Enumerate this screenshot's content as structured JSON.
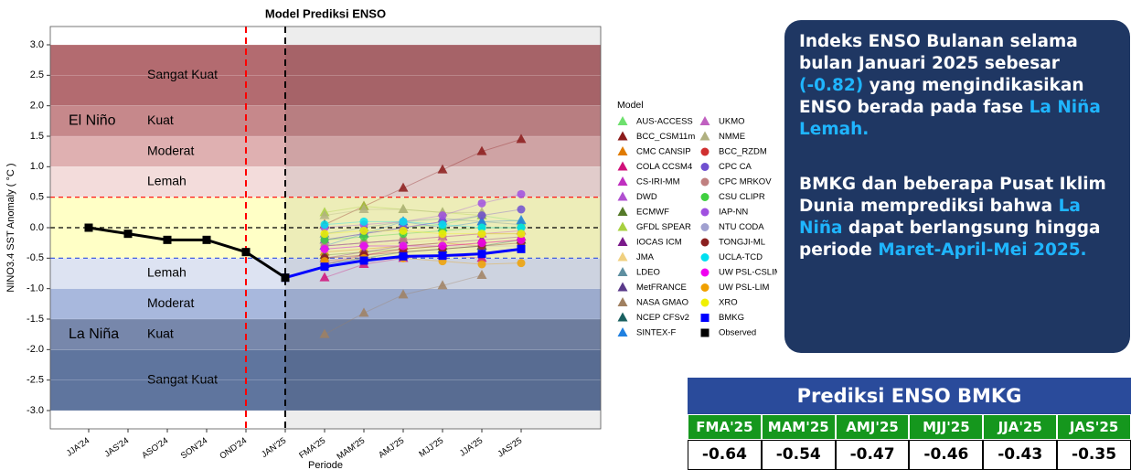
{
  "chart_data": {
    "type": "line",
    "title": "Model Prediksi ENSO",
    "y_label": "NINO3.4 SST Anomaly ( °C )",
    "x_label": "Periode",
    "categories": [
      "JJA'24",
      "JAS'24",
      "ASO'24",
      "SON'24",
      "OND'24",
      "JAN'25",
      "FMA'25",
      "MAM'25",
      "AMJ'25",
      "MJJ'25",
      "JJA'25",
      "JAS'25"
    ],
    "ylim": [
      -3.3,
      3.3
    ],
    "yticks": [
      {
        "value": 3,
        "label": "3.0"
      },
      2.5,
      {
        "value": 2,
        "label": "2.0"
      },
      1.5,
      {
        "value": 1,
        "label": "1.0"
      },
      0.5,
      {
        "value": 0,
        "label": "0.0"
      },
      -0.5,
      {
        "value": -1,
        "label": "-1.0"
      },
      -1.5,
      {
        "value": -2,
        "label": "-2.0"
      },
      -2.5,
      {
        "value": -3,
        "label": "-3.0"
      }
    ],
    "bands": [
      {
        "from": 2,
        "to": 3,
        "label": "Sangat Kuat",
        "color": "#b36b70"
      },
      {
        "from": 1.5,
        "to": 2,
        "label": "Kuat",
        "phase": "El Niño",
        "color": "#c6888b"
      },
      {
        "from": 1,
        "to": 1.5,
        "label": "Moderat",
        "color": "#dfb0b1"
      },
      {
        "from": 0.5,
        "to": 1,
        "label": "Lemah",
        "color": "#f3dcdb"
      },
      {
        "from": -0.5,
        "to": 0.5,
        "color": "#ffffc6"
      },
      {
        "from": -1,
        "to": -0.5,
        "label": "Lemah",
        "color": "#dde3f2"
      },
      {
        "from": -1.5,
        "to": -1,
        "label": "Moderat",
        "color": "#a8b8dd"
      },
      {
        "from": -2,
        "to": -1.5,
        "label": "Kuat",
        "phase": "La Niña",
        "color": "#7787ab"
      },
      {
        "from": -3,
        "to": -2,
        "label": "Sangat Kuat",
        "color": "#5f759e"
      }
    ],
    "hlines": [
      {
        "value": 0.5,
        "color": "#ff0000"
      },
      {
        "value": 0,
        "color": "#000000"
      },
      {
        "value": -0.5,
        "color": "#2f4fdf"
      }
    ],
    "vlines": [
      {
        "at": "OND'24",
        "color": "#ff0000"
      },
      {
        "at": "JAN'25",
        "color": "#000000"
      }
    ],
    "legend_title": "Model",
    "series": [
      {
        "name": "AUS-ACCESS",
        "color": "#6ee06e",
        "marker": "triangle",
        "values": [
          null,
          null,
          null,
          null,
          null,
          null,
          -0.2,
          -0.1,
          0.0,
          0.05,
          0.2,
          0.1
        ]
      },
      {
        "name": "BCC_CSM11m",
        "color": "#8b1a1a",
        "marker": "triangle",
        "values": [
          null,
          null,
          null,
          null,
          null,
          null,
          0.05,
          0.35,
          0.65,
          0.95,
          1.25,
          1.45
        ]
      },
      {
        "name": "CMC CANSIP",
        "color": "#e07b00",
        "marker": "triangle",
        "values": [
          null,
          null,
          null,
          null,
          null,
          null,
          -0.4,
          -0.35,
          -0.3,
          -0.25,
          -0.3,
          null
        ]
      },
      {
        "name": "COLA CCSM4",
        "color": "#d0107a",
        "marker": "triangle",
        "values": [
          null,
          null,
          null,
          null,
          null,
          null,
          -0.82,
          -0.6,
          -0.5,
          -0.45,
          -0.5,
          null
        ]
      },
      {
        "name": "CS-IRI-MM",
        "color": "#c030c0",
        "marker": "triangle",
        "values": [
          null,
          null,
          null,
          null,
          null,
          null,
          -0.3,
          -0.25,
          -0.2,
          -0.15,
          -0.1,
          -0.05
        ]
      },
      {
        "name": "DWD",
        "color": "#b050d0",
        "marker": "triangle",
        "values": [
          null,
          null,
          null,
          null,
          null,
          null,
          -0.2,
          -0.1,
          0.0,
          0.1,
          null,
          null
        ]
      },
      {
        "name": "ECMWF",
        "color": "#557a2a",
        "marker": "triangle",
        "values": [
          null,
          null,
          null,
          null,
          null,
          null,
          -0.45,
          -0.4,
          -0.35,
          -0.3,
          null,
          null
        ]
      },
      {
        "name": "GFDL SPEAR",
        "color": "#a8d040",
        "marker": "triangle",
        "values": [
          null,
          null,
          null,
          null,
          null,
          null,
          0.25,
          0.35,
          0.3,
          0.25,
          0.2,
          null
        ]
      },
      {
        "name": "IOCAS ICM",
        "color": "#7a1a8a",
        "marker": "triangle",
        "values": [
          null,
          null,
          null,
          null,
          null,
          null,
          -0.5,
          -0.4,
          -0.3,
          -0.25,
          -0.2,
          -0.15
        ]
      },
      {
        "name": "JMA",
        "color": "#f0d080",
        "marker": "triangle",
        "values": [
          null,
          null,
          null,
          null,
          null,
          null,
          -0.35,
          -0.3,
          -0.25,
          -0.2,
          null,
          null
        ]
      },
      {
        "name": "LDEO",
        "color": "#5f8fa0",
        "marker": "triangle",
        "values": [
          null,
          null,
          null,
          null,
          null,
          null,
          -0.1,
          0.0,
          0.1,
          0.15,
          0.1,
          0.05
        ]
      },
      {
        "name": "MetFRANCE",
        "color": "#5a3a8a",
        "marker": "triangle",
        "values": [
          null,
          null,
          null,
          null,
          null,
          null,
          -0.3,
          -0.25,
          -0.2,
          null,
          null,
          null
        ]
      },
      {
        "name": "NASA GMAO",
        "color": "#a08060",
        "marker": "triangle",
        "values": [
          null,
          null,
          null,
          null,
          null,
          null,
          -1.75,
          -1.4,
          -1.1,
          -0.95,
          -0.78,
          null
        ]
      },
      {
        "name": "NCEP CFSv2",
        "color": "#1a6060",
        "marker": "triangle",
        "values": [
          null,
          null,
          null,
          null,
          null,
          null,
          -0.6,
          -0.5,
          -0.4,
          -0.35,
          -0.3,
          -0.2
        ]
      },
      {
        "name": "SINTEX-F",
        "color": "#2080e0",
        "marker": "triangle",
        "values": [
          null,
          null,
          null,
          null,
          null,
          null,
          -0.3,
          -0.1,
          0.1,
          0.0,
          0.1,
          0.12
        ]
      },
      {
        "name": "UKMO",
        "color": "#c060c0",
        "marker": "triangle",
        "values": [
          null,
          null,
          null,
          null,
          null,
          null,
          -0.55,
          -0.45,
          -0.35,
          null,
          null,
          null
        ]
      },
      {
        "name": "NMME",
        "color": "#b0b080",
        "marker": "triangle",
        "values": [
          null,
          null,
          null,
          null,
          null,
          null,
          0.2,
          0.3,
          0.3,
          0.25,
          0.25,
          null
        ]
      },
      {
        "name": "BCC_RZDM",
        "color": "#d03030",
        "marker": "circle",
        "values": [
          null,
          null,
          null,
          null,
          null,
          null,
          -0.6,
          -0.45,
          -0.35,
          -0.3,
          -0.25,
          -0.2
        ]
      },
      {
        "name": "CPC CA",
        "color": "#7050d0",
        "marker": "circle",
        "values": [
          null,
          null,
          null,
          null,
          null,
          null,
          -0.2,
          -0.1,
          0.0,
          0.1,
          0.2,
          0.3
        ]
      },
      {
        "name": "CPC MRKOV",
        "color": "#c08080",
        "marker": "circle",
        "values": [
          null,
          null,
          null,
          null,
          null,
          null,
          -0.3,
          -0.25,
          -0.2,
          -0.15,
          -0.1,
          -0.1
        ]
      },
      {
        "name": "CSU CLIPR",
        "color": "#40d040",
        "marker": "circle",
        "values": [
          null,
          null,
          null,
          null,
          null,
          null,
          -0.2,
          -0.15,
          -0.1,
          -0.05,
          0.0,
          0.0
        ]
      },
      {
        "name": "IAP-NN",
        "color": "#a050e0",
        "marker": "circle",
        "values": [
          null,
          null,
          null,
          null,
          null,
          null,
          0.0,
          0.05,
          0.1,
          0.2,
          0.4,
          0.55
        ]
      },
      {
        "name": "NTU CODA",
        "color": "#a0a0d0",
        "marker": "circle",
        "values": [
          null,
          null,
          null,
          null,
          null,
          null,
          -0.35,
          -0.3,
          -0.3,
          -0.3,
          -0.3,
          -0.3
        ]
      },
      {
        "name": "TONGJI-ML",
        "color": "#8b2020",
        "marker": "circle",
        "values": [
          null,
          null,
          null,
          null,
          null,
          null,
          -0.5,
          -0.45,
          -0.4,
          -0.35,
          -0.3,
          -0.25
        ]
      },
      {
        "name": "UCLA-TCD",
        "color": "#00e0f0",
        "marker": "circle",
        "values": [
          null,
          null,
          null,
          null,
          null,
          null,
          0.05,
          0.1,
          0.1,
          0.05,
          0.0,
          0.0
        ]
      },
      {
        "name": "UW PSL-CSLIM",
        "color": "#f000f0",
        "marker": "circle",
        "values": [
          null,
          null,
          null,
          null,
          null,
          null,
          -0.35,
          -0.3,
          -0.3,
          -0.3,
          -0.25,
          -0.2
        ]
      },
      {
        "name": "UW PSL-LIM",
        "color": "#f0a000",
        "marker": "circle",
        "values": [
          null,
          null,
          null,
          null,
          null,
          null,
          -0.55,
          -0.5,
          -0.5,
          -0.55,
          -0.6,
          -0.58
        ]
      },
      {
        "name": "XRO",
        "color": "#f0f000",
        "marker": "circle",
        "values": [
          null,
          null,
          null,
          null,
          null,
          null,
          -0.1,
          -0.05,
          -0.05,
          -0.1,
          -0.1,
          -0.1
        ]
      },
      {
        "name": "BMKG",
        "color": "#0000ff",
        "marker": "square",
        "emphasis": true,
        "values": [
          null,
          null,
          null,
          null,
          null,
          -0.82,
          -0.64,
          -0.54,
          -0.47,
          -0.46,
          -0.43,
          -0.35
        ]
      },
      {
        "name": "Observed",
        "color": "#000000",
        "marker": "square",
        "emphasis": true,
        "values": [
          0.0,
          -0.1,
          -0.2,
          -0.2,
          -0.4,
          -0.82,
          null,
          null,
          null,
          null,
          null,
          null
        ]
      }
    ]
  },
  "info_panel": {
    "paragraphs": [
      [
        {
          "text": "Indeks ENSO Bulanan selama bulan Januari  2025 sebesar ",
          "color": "#ffffff"
        },
        {
          "text": "(-0.82)",
          "color": "#1fb5ff"
        },
        {
          "text": " yang mengindikasikan ENSO berada pada fase ",
          "color": "#ffffff"
        },
        {
          "text": "La Niña Lemah.",
          "color": "#1fb5ff"
        }
      ],
      [
        {
          "text": "BMKG dan beberapa Pusat Iklim Dunia memprediksi bahwa ",
          "color": "#ffffff"
        },
        {
          "text": "La Niña",
          "color": "#1fb5ff"
        },
        {
          "text": "  dapat berlangsung hingga periode ",
          "color": "#ffffff"
        },
        {
          "text": "Maret-April-Mei 2025.",
          "color": "#1fb5ff"
        }
      ]
    ]
  },
  "table": {
    "title": "Prediksi ENSO BMKG",
    "header": [
      "FMA'25",
      "MAM'25",
      "AMJ'25",
      "MJJ'25",
      "JJA'25",
      "JAS'25"
    ],
    "values": [
      -0.64,
      -0.54,
      -0.47,
      -0.46,
      -0.43,
      -0.35
    ]
  }
}
